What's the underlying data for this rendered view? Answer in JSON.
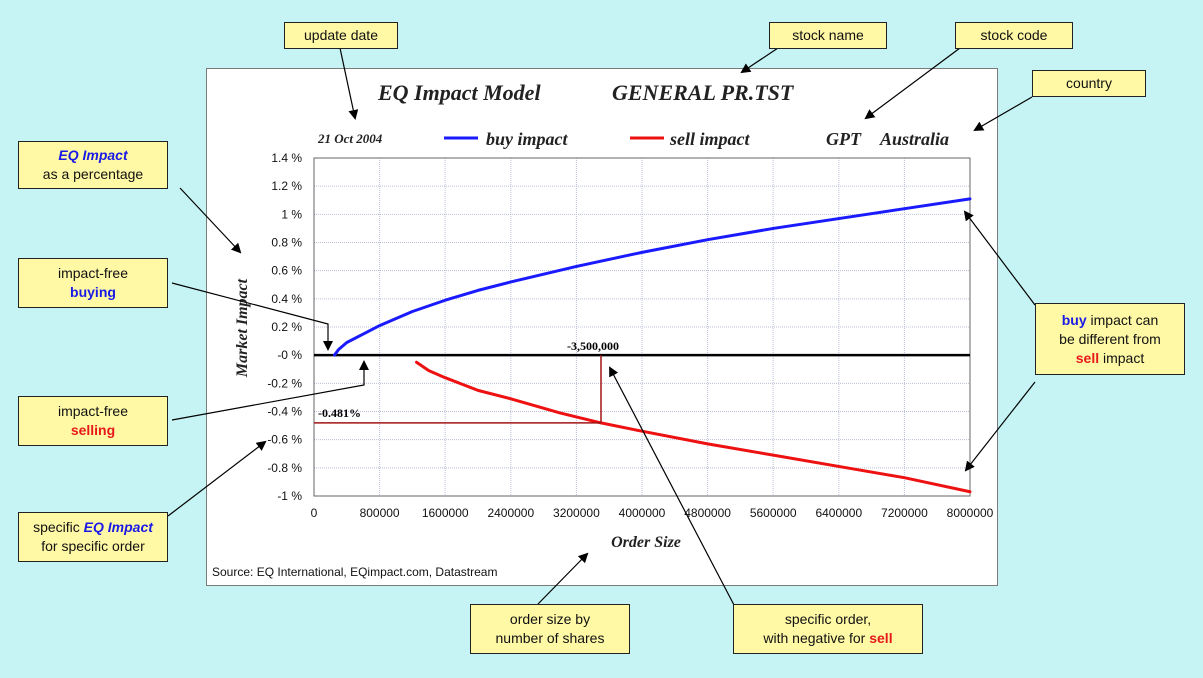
{
  "chart_data": {
    "type": "line",
    "title_left": "EQ Impact Model",
    "title_right": "GENERAL PR.TST",
    "date": "21 Oct 2004",
    "stock_code": "GPT",
    "country": "Australia",
    "xlabel": "Order Size",
    "ylabel": "Market Impact",
    "source": "Source: EQ International, EQimpact.com, Datastream",
    "xlim": [
      0,
      8000000
    ],
    "ylim": [
      -1.0,
      1.4
    ],
    "x_ticks": [
      0,
      800000,
      1600000,
      2400000,
      3200000,
      4000000,
      4800000,
      5600000,
      6400000,
      7200000,
      8000000
    ],
    "x_tick_labels": [
      "0",
      "800000",
      "1600000",
      "2400000",
      "3200000",
      "4000000",
      "4800000",
      "5600000",
      "6400000",
      "7200000",
      "8000000"
    ],
    "y_ticks": [
      -1.0,
      -0.8,
      -0.6,
      -0.4,
      -0.2,
      0,
      0.2,
      0.4,
      0.6,
      0.8,
      1.0,
      1.2,
      1.4
    ],
    "y_tick_labels": [
      "-1 %",
      "-0.8 %",
      "-0.6 %",
      "-0.4 %",
      "-0.2 %",
      "-0 %",
      "0.2 %",
      "0.4 %",
      "0.6 %",
      "0.8 %",
      "1 %",
      "1.2 %",
      "1.4 %"
    ],
    "series": [
      {
        "name": "buy impact",
        "color": "#1a1aff",
        "x": [
          250000,
          300000,
          400000,
          600000,
          800000,
          1200000,
          1600000,
          2000000,
          2400000,
          3200000,
          4000000,
          4800000,
          5600000,
          6400000,
          7200000,
          8000000
        ],
        "y": [
          0.0,
          0.04,
          0.09,
          0.15,
          0.21,
          0.31,
          0.39,
          0.46,
          0.52,
          0.63,
          0.73,
          0.82,
          0.9,
          0.97,
          1.04,
          1.11
        ]
      },
      {
        "name": "sell impact",
        "color": "#ee1111",
        "x": [
          1250000,
          1400000,
          1600000,
          2000000,
          2400000,
          3000000,
          3500000,
          4000000,
          4800000,
          5600000,
          6400000,
          7200000,
          8000000
        ],
        "y": [
          -0.05,
          -0.11,
          -0.16,
          -0.25,
          -0.31,
          -0.41,
          -0.481,
          -0.54,
          -0.63,
          -0.71,
          -0.79,
          -0.87,
          -0.97
        ]
      }
    ],
    "annotation_order_label": "-3,500,000",
    "annotation_order_x": 3500000,
    "annotation_impact_label": "-0.481%",
    "annotation_impact_y": -0.481
  },
  "callouts": {
    "update_date": "update date",
    "stock_name": "stock name",
    "stock_code": "stock code",
    "country": "country",
    "eq_impact_title": "EQ Impact",
    "eq_impact_sub": "as a percentage",
    "impact_free_buying_1": "impact-free",
    "impact_free_buying_2": "buying",
    "impact_free_selling_1": "impact-free",
    "impact_free_selling_2": "selling",
    "specific_1": "specific",
    "specific_2": "EQ Impact",
    "specific_3": "for specific order",
    "order_size_1": "order size by",
    "order_size_2": "number of shares",
    "specific_order_1": "specific order,",
    "specific_order_2": "with negative for",
    "specific_order_3": "sell",
    "buy_diff_1": "buy",
    "buy_diff_2": "impact can",
    "buy_diff_3": "be different from",
    "buy_diff_4": "sell",
    "buy_diff_5": "impact"
  }
}
